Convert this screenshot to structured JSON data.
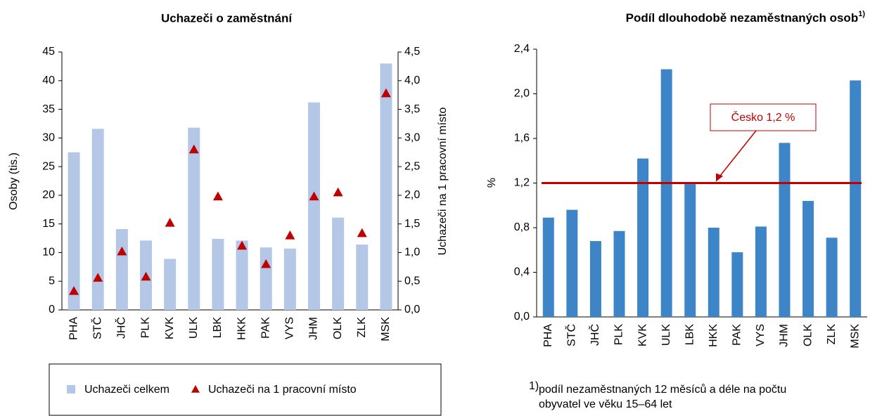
{
  "chart_data": [
    {
      "type": "bar",
      "title": "Uchazeči o zaměstnání",
      "ylabel": "Osoby (tis.)",
      "y2label": "Uchazeči na 1 pracovní místo",
      "categories": [
        "PHA",
        "STČ",
        "JHČ",
        "PLK",
        "KVK",
        "ULK",
        "LBK",
        "HKK",
        "PAK",
        "VYS",
        "JHM",
        "OLK",
        "ZLK",
        "MSK"
      ],
      "series": [
        {
          "name": "Uchazeči celkem",
          "color": "#b4c7e7",
          "values": [
            27.5,
            31.6,
            14.1,
            12.1,
            8.9,
            31.8,
            12.4,
            12.1,
            10.9,
            10.7,
            36.2,
            16.1,
            11.4,
            43.0
          ]
        },
        {
          "name": "Uchazeči na 1 pracovní místo",
          "color": "#c00000",
          "axis": "y2",
          "marker": "triangle",
          "values": [
            0.33,
            0.56,
            1.02,
            0.58,
            1.52,
            2.8,
            1.98,
            1.12,
            0.8,
            1.3,
            1.98,
            2.05,
            1.34,
            3.78
          ]
        }
      ],
      "ylim": [
        0,
        45
      ],
      "yticks": [
        0,
        5,
        10,
        15,
        20,
        25,
        30,
        35,
        40,
        45
      ],
      "y2lim": [
        0,
        4.5
      ],
      "y2ticks": [
        {
          "value": 0,
          "label": "0,0"
        },
        {
          "value": 0.5,
          "label": "0,5"
        },
        {
          "value": 1,
          "label": "1,0"
        },
        {
          "value": 1.5,
          "label": "1,5"
        },
        {
          "value": 2,
          "label": "2,0"
        },
        {
          "value": 2.5,
          "label": "2,5"
        },
        {
          "value": 3,
          "label": "3,0"
        },
        {
          "value": 3.5,
          "label": "3,5"
        },
        {
          "value": 4,
          "label": "4,0"
        },
        {
          "value": 4.5,
          "label": "4,5"
        }
      ],
      "grid": false,
      "legend": "bottom"
    },
    {
      "type": "bar",
      "title": "Podíl dlouhodobě  nezaměstnaných osob",
      "title_note": "1)",
      "ylabel": "%",
      "categories": [
        "PHA",
        "STČ",
        "JHČ",
        "PLK",
        "KVK",
        "ULK",
        "LBK",
        "HKK",
        "PAK",
        "VYS",
        "JHM",
        "OLK",
        "ZLK",
        "MSK"
      ],
      "values": [
        0.89,
        0.96,
        0.68,
        0.77,
        1.42,
        2.22,
        1.19,
        0.8,
        0.58,
        0.81,
        1.56,
        1.04,
        0.71,
        2.12
      ],
      "color": "#3d85c6",
      "ylim": [
        0,
        2.4
      ],
      "yticks": [
        {
          "value": 0,
          "label": "0,0"
        },
        {
          "value": 0.4,
          "label": "0,4"
        },
        {
          "value": 0.8,
          "label": "0,8"
        },
        {
          "value": 1.2,
          "label": "1,2"
        },
        {
          "value": 1.6,
          "label": "1,6"
        },
        {
          "value": 2.0,
          "label": "2,0"
        },
        {
          "value": 2.4,
          "label": "2,4"
        }
      ],
      "reference_line": {
        "value": 1.2,
        "label": "Česko 1,2 %",
        "color": "#c00000"
      },
      "footnote": {
        "marker": "1)",
        "lines": [
          "podíl nezaměstnaných 12 měsíců a déle na počtu",
          "obyvatel ve věku 15–64 let"
        ]
      },
      "grid": false
    }
  ]
}
